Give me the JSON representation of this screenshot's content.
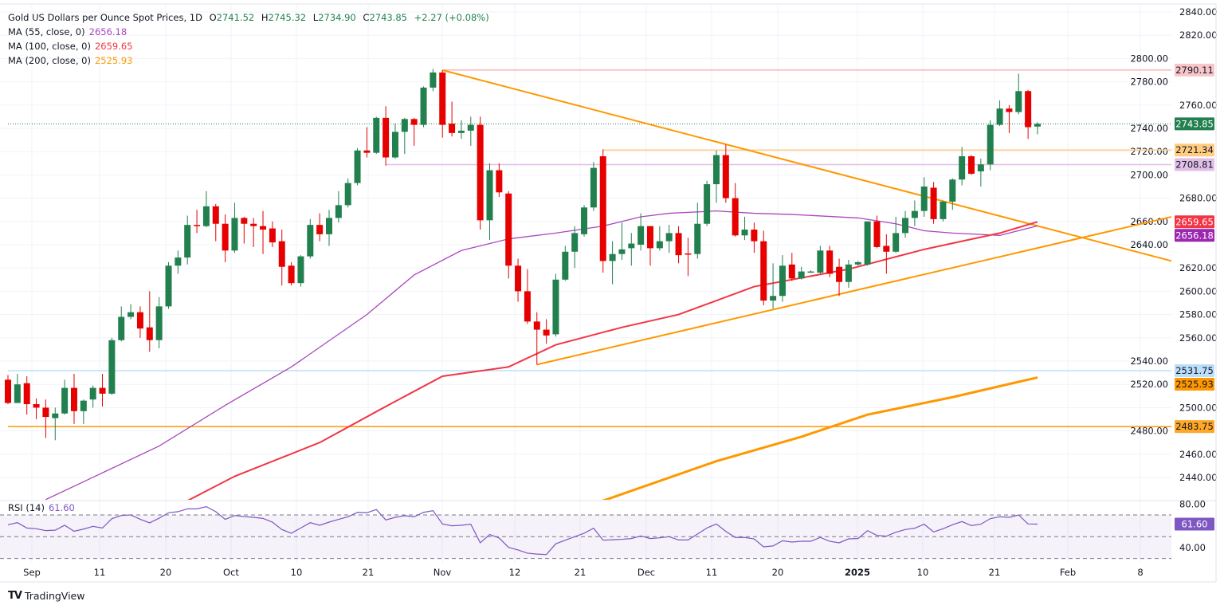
{
  "legend": {
    "title": "Gold US Dollars per Ounce Spot Prices, 1D",
    "open_label": "O",
    "open": "2741.52",
    "high_label": "H",
    "high": "2745.32",
    "low_label": "L",
    "low": "2734.90",
    "close_label": "C",
    "close": "2743.85",
    "change": "+2.27 (+0.08%)",
    "ma55_label": "MA (55, close, 0)",
    "ma55_value": "2656.18",
    "ma100_label": "MA (100, close, 0)",
    "ma100_value": "2659.65",
    "ma200_label": "MA (200, close, 0)",
    "ma200_value": "2525.93"
  },
  "rsi_legend": {
    "label": "RSI (14)",
    "value": "61.60"
  },
  "brand": {
    "name": "TradingView"
  },
  "colors": {
    "up": "#22804f",
    "down": "#e60000",
    "ma55": "#ab47bc",
    "ma100": "#f23645",
    "ma200": "#ff9800",
    "rsi": "#7e57c2",
    "trendline": "#ff9800"
  },
  "chart_data": [
    {
      "type": "candlestick",
      "title": "Gold US Dollars per Ounce Spot Prices, 1D",
      "ylim": [
        2420,
        2850
      ],
      "y_ticks": [
        "2840.00",
        "2820.00",
        "2800.00",
        "2780.00",
        "2760.00",
        "2740.00",
        "2720.00",
        "2700.00",
        "2680.00",
        "2660.00",
        "2640.00",
        "2620.00",
        "2600.00",
        "2580.00",
        "2560.00",
        "2540.00",
        "2520.00",
        "2500.00",
        "2480.00",
        "2460.00",
        "2440.00"
      ],
      "x_ticks": [
        "Sep",
        "11",
        "20",
        "Oct",
        "10",
        "21",
        "Nov",
        "12",
        "21",
        "Dec",
        "11",
        "20",
        "2025",
        "10",
        "21",
        "Feb",
        "8"
      ],
      "grid": true,
      "ohlc": [
        [
          2524,
          2528,
          2503,
          2504
        ],
        [
          2504,
          2529,
          2504,
          2520
        ],
        [
          2521,
          2527,
          2494,
          2503
        ],
        [
          2503,
          2508,
          2490,
          2500
        ],
        [
          2500,
          2507,
          2474,
          2492
        ],
        [
          2491,
          2500,
          2472,
          2495
        ],
        [
          2495,
          2524,
          2494,
          2517
        ],
        [
          2517,
          2529,
          2486,
          2497
        ],
        [
          2497,
          2507,
          2486,
          2506
        ],
        [
          2507,
          2519,
          2500,
          2517
        ],
        [
          2517,
          2529,
          2501,
          2512
        ],
        [
          2512,
          2560,
          2511,
          2558
        ],
        [
          2558,
          2587,
          2557,
          2578
        ],
        [
          2578,
          2589,
          2576,
          2582
        ],
        [
          2582,
          2587,
          2560,
          2568
        ],
        [
          2569,
          2600,
          2548,
          2558
        ],
        [
          2558,
          2595,
          2551,
          2587
        ],
        [
          2587,
          2625,
          2585,
          2622
        ],
        [
          2622,
          2635,
          2615,
          2629
        ],
        [
          2629,
          2665,
          2623,
          2657
        ],
        [
          2657,
          2670,
          2650,
          2656
        ],
        [
          2656,
          2686,
          2655,
          2673
        ],
        [
          2673,
          2675,
          2643,
          2658
        ],
        [
          2658,
          2666,
          2625,
          2635
        ],
        [
          2635,
          2676,
          2633,
          2663
        ],
        [
          2663,
          2664,
          2641,
          2658
        ],
        [
          2658,
          2663,
          2638,
          2656
        ],
        [
          2656,
          2669,
          2632,
          2653
        ],
        [
          2654,
          2660,
          2638,
          2642
        ],
        [
          2643,
          2653,
          2605,
          2621
        ],
        [
          2622,
          2625,
          2605,
          2607
        ],
        [
          2607,
          2631,
          2604,
          2630
        ],
        [
          2630,
          2662,
          2628,
          2657
        ],
        [
          2657,
          2667,
          2643,
          2649
        ],
        [
          2649,
          2670,
          2639,
          2663
        ],
        [
          2663,
          2686,
          2659,
          2674
        ],
        [
          2674,
          2697,
          2672,
          2693
        ],
        [
          2693,
          2723,
          2691,
          2721
        ],
        [
          2721,
          2741,
          2715,
          2719
        ],
        [
          2719,
          2750,
          2718,
          2749
        ],
        [
          2749,
          2759,
          2708,
          2715
        ],
        [
          2715,
          2744,
          2714,
          2737
        ],
        [
          2737,
          2749,
          2718,
          2748
        ],
        [
          2748,
          2749,
          2725,
          2743
        ],
        [
          2743,
          2776,
          2741,
          2775
        ],
        [
          2775,
          2791,
          2772,
          2788
        ],
        [
          2788,
          2790,
          2732,
          2743
        ],
        [
          2744,
          2763,
          2733,
          2736
        ],
        [
          2736,
          2747,
          2731,
          2738
        ],
        [
          2738,
          2750,
          2725,
          2743
        ],
        [
          2743,
          2750,
          2653,
          2661
        ],
        [
          2661,
          2710,
          2644,
          2704
        ],
        [
          2704,
          2710,
          2681,
          2685
        ],
        [
          2684,
          2686,
          2611,
          2622
        ],
        [
          2622,
          2628,
          2591,
          2600
        ],
        [
          2600,
          2619,
          2572,
          2574
        ],
        [
          2574,
          2582,
          2537,
          2567
        ],
        [
          2567,
          2576,
          2555,
          2562
        ],
        [
          2563,
          2615,
          2561,
          2610
        ],
        [
          2610,
          2639,
          2609,
          2634
        ],
        [
          2634,
          2656,
          2620,
          2650
        ],
        [
          2649,
          2674,
          2647,
          2672
        ],
        [
          2672,
          2711,
          2669,
          2706
        ],
        [
          2716,
          2722,
          2616,
          2626
        ],
        [
          2626,
          2643,
          2606,
          2632
        ],
        [
          2632,
          2659,
          2627,
          2636
        ],
        [
          2637,
          2650,
          2622,
          2641
        ],
        [
          2640,
          2667,
          2635,
          2656
        ],
        [
          2656,
          2656,
          2622,
          2637
        ],
        [
          2637,
          2656,
          2635,
          2643
        ],
        [
          2643,
          2657,
          2633,
          2650
        ],
        [
          2650,
          2656,
          2624,
          2631
        ],
        [
          2632.5,
          2646,
          2613,
          2632
        ],
        [
          2632,
          2676,
          2628,
          2658
        ],
        [
          2658,
          2695,
          2656,
          2692
        ],
        [
          2692,
          2721,
          2676,
          2717
        ],
        [
          2717,
          2726,
          2676,
          2680
        ],
        [
          2680,
          2693,
          2647,
          2648
        ],
        [
          2648,
          2664,
          2644,
          2653
        ],
        [
          2653,
          2659,
          2633,
          2643
        ],
        [
          2643,
          2652,
          2588,
          2592
        ],
        [
          2592,
          2624,
          2585,
          2596
        ],
        [
          2596,
          2631,
          2591,
          2622
        ],
        [
          2623,
          2633,
          2609,
          2611
        ],
        [
          2611,
          2621,
          2610,
          2617
        ],
        [
          2617,
          2618,
          2616,
          2617
        ],
        [
          2616,
          2639,
          2615,
          2635
        ],
        [
          2635,
          2639,
          2612,
          2615
        ],
        [
          2621,
          2628,
          2596,
          2608
        ],
        [
          2608,
          2627,
          2603,
          2623
        ],
        [
          2623,
          2626,
          2622,
          2625
        ],
        [
          2623,
          2660,
          2622,
          2660
        ],
        [
          2660,
          2665,
          2637,
          2638
        ],
        [
          2639,
          2649,
          2615,
          2634
        ],
        [
          2634,
          2664,
          2633,
          2650
        ],
        [
          2650,
          2669,
          2646,
          2663
        ],
        [
          2663,
          2678,
          2656,
          2669
        ],
        [
          2669,
          2698,
          2664,
          2690
        ],
        [
          2689,
          2694,
          2658,
          2662
        ],
        [
          2662,
          2678,
          2660,
          2677
        ],
        [
          2677,
          2697,
          2670,
          2696
        ],
        [
          2696,
          2724,
          2691,
          2716
        ],
        [
          2716,
          2717,
          2700,
          2701
        ],
        [
          2703,
          2714,
          2690,
          2709
        ],
        [
          2709,
          2747,
          2704,
          2743
        ],
        [
          2743,
          2764,
          2742,
          2757
        ],
        [
          2757,
          2760,
          2736,
          2754
        ],
        [
          2754,
          2787,
          2752,
          2772
        ],
        [
          2772,
          2773,
          2731,
          2741
        ],
        [
          2741.52,
          2745.32,
          2734.9,
          2743.85
        ]
      ],
      "moving_averages": [
        {
          "name": "MA (55, close, 0)",
          "color": "#ab47bc",
          "points": [
            [
              4,
              2421
            ],
            [
              16,
              2467
            ],
            [
              23,
              2502
            ],
            [
              30,
              2535
            ],
            [
              38,
              2580
            ],
            [
              43,
              2614
            ],
            [
              48,
              2635
            ],
            [
              53,
              2645
            ],
            [
              58,
              2650
            ],
            [
              63,
              2656
            ],
            [
              67,
              2664
            ],
            [
              70,
              2667
            ],
            [
              75,
              2669
            ],
            [
              79,
              2667
            ],
            [
              83,
              2666
            ],
            [
              90,
              2663
            ],
            [
              94,
              2658
            ],
            [
              97,
              2652
            ],
            [
              100,
              2650
            ],
            [
              105,
              2648
            ],
            [
              109,
              2656.18
            ]
          ]
        },
        {
          "name": "MA (100, close, 0)",
          "color": "#f23645",
          "points": [
            [
              19,
              2420
            ],
            [
              24,
              2441
            ],
            [
              33,
              2470
            ],
            [
              40,
              2501
            ],
            [
              46,
              2527
            ],
            [
              53,
              2535
            ],
            [
              58,
              2554
            ],
            [
              65,
              2569
            ],
            [
              71,
              2580
            ],
            [
              79,
              2604
            ],
            [
              89,
              2619
            ],
            [
              97,
              2636
            ],
            [
              105,
              2650
            ],
            [
              109,
              2659.65
            ]
          ]
        },
        {
          "name": "MA (200, close, 0)",
          "color": "#ff9800",
          "points": [
            [
              63,
              2420
            ],
            [
              75,
              2454
            ],
            [
              84,
              2475
            ],
            [
              91,
              2494
            ],
            [
              100,
              2509
            ],
            [
              109,
              2525.93
            ]
          ]
        }
      ],
      "trendlines": [
        {
          "color": "#ff9800",
          "from": [
            46,
            2790
          ],
          "to": [
            123.2,
            2626
          ]
        },
        {
          "color": "#ff9800",
          "from": [
            56,
            2537
          ],
          "to": [
            123.2,
            2664
          ]
        }
      ],
      "horizontal_levels": [
        {
          "value": 2790.11,
          "label": "2790.11",
          "from_bar": 46,
          "line": "#f7b6bb",
          "bg": "#f8c5c9",
          "fg": "#131722"
        },
        {
          "value": 2743.85,
          "label": "2743.85",
          "from_bar": 0,
          "line": "#22804f",
          "dotted": true,
          "bg": "#22804f",
          "fg": "#ffffff"
        },
        {
          "value": 2721.34,
          "label": "2721.34",
          "from_bar": 63,
          "line": "#ffcc80",
          "bg": "#ffcc80",
          "fg": "#131722"
        },
        {
          "value": 2708.81,
          "label": "2708.81",
          "from_bar": 40,
          "line": "#e1bee7",
          "bg": "#e1bee7",
          "fg": "#131722"
        },
        {
          "value": 2531.75,
          "label": "2531.75",
          "from_bar": 0,
          "line": "#bbdefb",
          "bg": "#bbdefb",
          "fg": "#131722"
        },
        {
          "value": 2483.75,
          "label": "2483.75",
          "from_bar": 0,
          "line": "#ff9800",
          "bg": "#ffa726",
          "fg": "#131722"
        }
      ],
      "value_tags": [
        {
          "value": 2659.65,
          "label": "2659.65",
          "bg": "#f23645",
          "fg": "#ffffff"
        },
        {
          "value": 2656.18,
          "label": "2656.18",
          "bg": "#9c27b0",
          "fg": "#ffffff"
        },
        {
          "value": 2525.93,
          "label": "2525.93",
          "bg": "#ff9800",
          "fg": "#131722"
        }
      ]
    },
    {
      "type": "line",
      "title": "RSI (14)",
      "ylim": [
        25,
        85
      ],
      "y_ticks": [
        "80.00",
        "40.00"
      ],
      "bands": [
        70,
        50,
        30
      ],
      "current": {
        "value": 61.6,
        "label": "61.60"
      },
      "values": [
        61,
        62.9,
        58,
        57.3,
        55.6,
        56,
        60.5,
        55,
        57,
        59.5,
        58,
        66.6,
        69.5,
        70,
        66,
        62.7,
        67,
        72,
        73,
        75.6,
        75.6,
        77.6,
        73,
        65.9,
        69.5,
        68.5,
        67.8,
        66.8,
        63.4,
        56.6,
        53.2,
        58,
        62.9,
        60.5,
        63.4,
        65.9,
        68.3,
        72.4,
        72,
        75,
        65.4,
        67.8,
        69.3,
        68.3,
        72.4,
        73.9,
        61.7,
        60,
        60.5,
        61.5,
        44.4,
        52,
        48.8,
        40.2,
        37.8,
        34.9,
        34,
        33.6,
        43.5,
        46.8,
        50,
        53.2,
        57.8,
        46.8,
        47.2,
        47.6,
        48.3,
        50.7,
        48.3,
        49,
        50,
        47,
        47,
        52.4,
        58,
        61.7,
        54.9,
        49.3,
        49.3,
        48,
        40.7,
        41.5,
        46.3,
        45.1,
        45.8,
        45.8,
        49.3,
        45.8,
        44.4,
        48,
        48.3,
        55.6,
        51.2,
        50.5,
        54.1,
        56.6,
        57.8,
        61.5,
        54.4,
        57.3,
        61,
        63.9,
        60.2,
        61.5,
        66.6,
        68.3,
        67.8,
        70,
        61.7,
        61.6
      ]
    }
  ]
}
